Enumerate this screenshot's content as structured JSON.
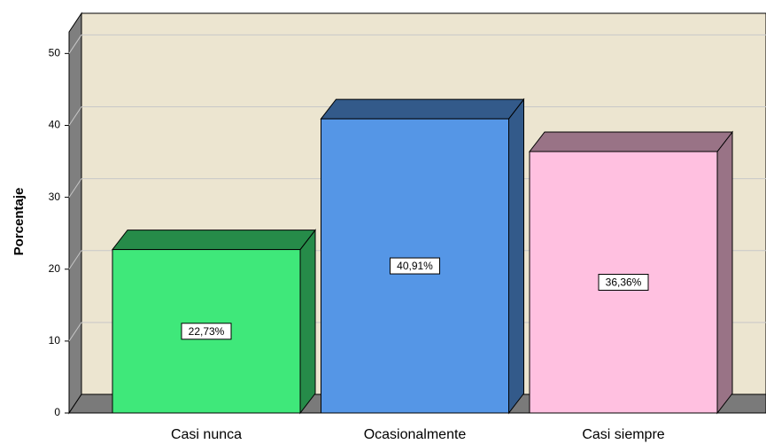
{
  "chart_data": {
    "type": "bar",
    "y_label": "Porcentaje",
    "categories": [
      "Casi nunca",
      "Ocasionalmente",
      "Casi siempre"
    ],
    "values": [
      22.73,
      40.91,
      36.36
    ],
    "value_labels": [
      "22,73%",
      "40,91%",
      "36,36%"
    ],
    "colors": [
      "#3fe87a",
      "#5596e6",
      "#ffc0e0"
    ],
    "ylim": [
      0,
      53
    ],
    "yticks": [
      0,
      10,
      20,
      30,
      40,
      50
    ],
    "grid": true
  }
}
